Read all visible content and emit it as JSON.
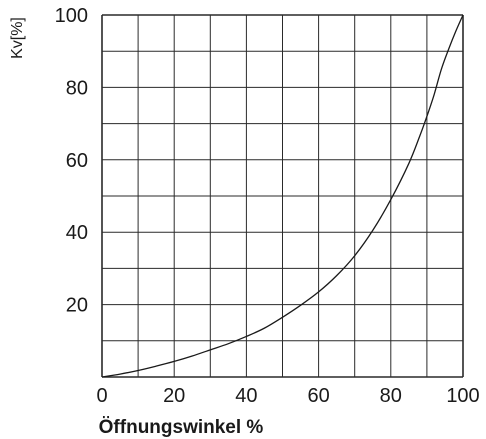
{
  "chart_data": {
    "type": "line",
    "title": "",
    "xlabel": "Öffnungswinkel %",
    "ylabel": "Kv[%]",
    "xlim": [
      0,
      100
    ],
    "ylim": [
      0,
      100
    ],
    "grid": true,
    "grid_x_step": 10,
    "grid_y_step": 10,
    "x_ticks": [
      "0",
      "20",
      "40",
      "60",
      "80",
      "100"
    ],
    "y_ticks": [
      "20",
      "40",
      "60",
      "80",
      "100"
    ],
    "series": [
      {
        "x": [
          0,
          5,
          10,
          15,
          20,
          25,
          30,
          35,
          40,
          45,
          50,
          55,
          60,
          65,
          70,
          75,
          80,
          85,
          88,
          90,
          92,
          94,
          96,
          98,
          100
        ],
        "y": [
          0,
          0.8,
          1.8,
          3,
          4.3,
          5.8,
          7.5,
          9.2,
          11.2,
          13.5,
          16.5,
          19.8,
          23.5,
          28,
          33.5,
          40.5,
          49,
          59,
          66.5,
          72,
          78,
          85,
          90.5,
          95.5,
          100
        ]
      }
    ],
    "line_color": "#1a1a1a",
    "grid_color": "#2a2a2a"
  }
}
